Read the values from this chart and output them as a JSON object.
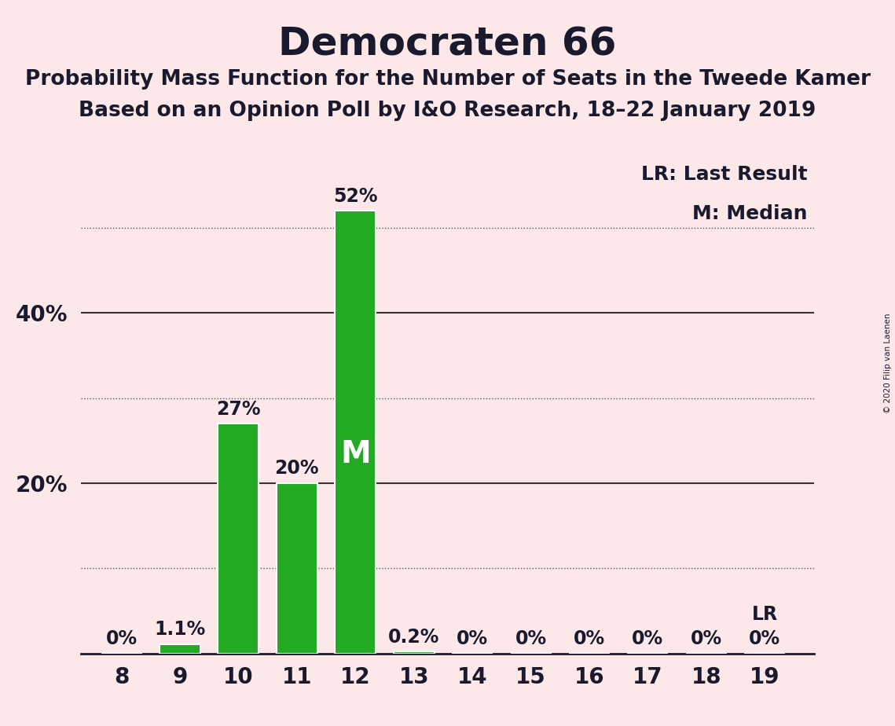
{
  "title": "Democraten 66",
  "subtitle1": "Probability Mass Function for the Number of Seats in the Tweede Kamer",
  "subtitle2": "Based on an Opinion Poll by I&O Research, 18–22 January 2019",
  "copyright": "© 2020 Filip van Laenen",
  "seats": [
    8,
    9,
    10,
    11,
    12,
    13,
    14,
    15,
    16,
    17,
    18,
    19
  ],
  "probabilities": [
    0.0,
    1.1,
    27.0,
    20.0,
    52.0,
    0.2,
    0.0,
    0.0,
    0.0,
    0.0,
    0.0,
    0.0
  ],
  "bar_color": "#22aa22",
  "background_color": "#fce8e8",
  "bar_labels": [
    "0%",
    "1.1%",
    "27%",
    "20%",
    "52%",
    "0.2%",
    "0%",
    "0%",
    "0%",
    "0%",
    "0%",
    "0%"
  ],
  "median_seat": 12,
  "last_result_seat": 19,
  "legend_lr": "LR: Last Result",
  "legend_m": "M: Median",
  "ytick_positions": [
    20,
    40
  ],
  "ytick_labels": [
    "20%",
    "40%"
  ],
  "dotted_lines": [
    10,
    30,
    50
  ],
  "solid_lines": [
    20,
    40
  ],
  "ylim": [
    0,
    58
  ],
  "bar_label_fontsize": 17,
  "axis_tick_fontsize": 20,
  "title_fontsize": 36,
  "subtitle_fontsize": 19,
  "legend_fontsize": 18,
  "m_label_fontsize": 28,
  "lr_label_fontsize": 17
}
